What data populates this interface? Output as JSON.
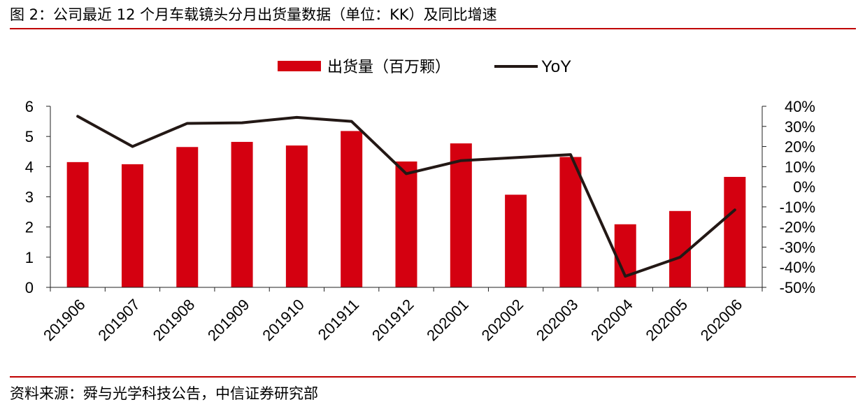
{
  "figure": {
    "title": "图 2：公司最近 12 个月车载镜头分月出货量数据（单位：KK）及同比增速",
    "source": "资料来源：舜与光学科技公告，中信证券研究部"
  },
  "colors": {
    "bar": "#d40010",
    "line": "#231815",
    "rule": "#c00000"
  },
  "chart_data": {
    "type": "bar",
    "categories": [
      "201906",
      "201907",
      "201908",
      "201909",
      "201910",
      "201911",
      "201912",
      "202001",
      "202002",
      "202003",
      "202004",
      "202005",
      "202006"
    ],
    "series": [
      {
        "name": "出货量（百万颗）",
        "type": "bar",
        "axis": "left",
        "values": [
          4.15,
          4.08,
          4.65,
          4.82,
          4.7,
          5.18,
          4.17,
          4.77,
          3.07,
          4.32,
          2.09,
          2.53,
          3.66
        ]
      },
      {
        "name": "YoY",
        "type": "line",
        "axis": "right",
        "values": [
          0.35,
          0.2,
          0.315,
          0.318,
          0.345,
          0.325,
          0.065,
          0.13,
          0.145,
          0.16,
          -0.445,
          -0.35,
          -0.115
        ]
      }
    ],
    "y_left": {
      "lim": [
        0,
        6
      ],
      "ticks": [
        "0",
        "1",
        "2",
        "3",
        "4",
        "5",
        "6"
      ]
    },
    "y_right": {
      "lim": [
        -0.5,
        0.4
      ],
      "ticks": [
        "-50%",
        "-40%",
        "-30%",
        "-20%",
        "-10%",
        "0%",
        "10%",
        "20%",
        "30%",
        "40%"
      ]
    },
    "legend_position": "top-center",
    "grid": false
  }
}
